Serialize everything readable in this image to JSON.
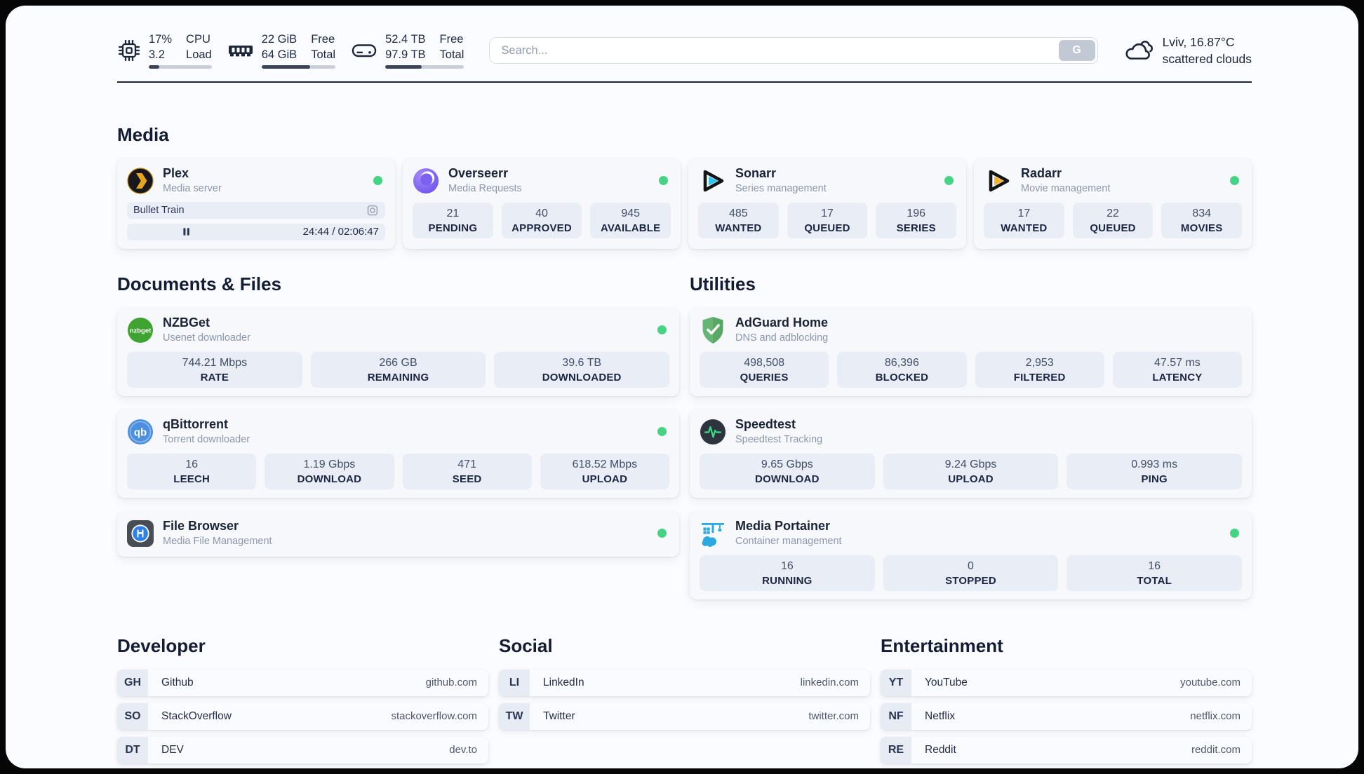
{
  "colors": {
    "status_online": "#45d483",
    "page_background": "#fbfcff",
    "card_background": "#f6f8fb",
    "stat_background": "#e9edf5",
    "text_dark": "#1b2337",
    "text_muted": "#8d97ab",
    "plex_accent": "#e8a41b",
    "sonarr_accent": "#33c3f0",
    "radarr_accent": "#f9b42d",
    "nzbget_accent": "#3fa331",
    "qbittorrent_accent": "#4c8fdd",
    "adguard_accent": "#67b574",
    "speedtest_accent": "#3bdc87",
    "portainer_accent": "#2ba9e0"
  },
  "header": {
    "metrics": {
      "cpu": {
        "value1": "17%",
        "value2": "3.2",
        "label1": "CPU",
        "label2": "Load",
        "progress": 17
      },
      "memory": {
        "value1": "22 GiB",
        "value2": "64 GiB",
        "label1": "Free",
        "label2": "Total",
        "progress": 66
      },
      "disk": {
        "value1": "52.4 TB",
        "value2": "97.9 TB",
        "label1": "Free",
        "label2": "Total",
        "progress": 46
      }
    },
    "search": {
      "placeholder": "Search...",
      "button": "G"
    },
    "weather": {
      "line1": "Lviv, 16.87°C",
      "line2": "scattered clouds"
    }
  },
  "media": {
    "heading": "Media",
    "plex": {
      "name": "Plex",
      "desc": "Media server",
      "stream_title": "Bullet Train",
      "stream_time": "24:44 / 02:06:47",
      "stream_progress": 19.5
    },
    "overseerr": {
      "name": "Overseerr",
      "desc": "Media Requests",
      "stats": [
        {
          "value": "21",
          "label": "PENDING"
        },
        {
          "value": "40",
          "label": "APPROVED"
        },
        {
          "value": "945",
          "label": "AVAILABLE"
        }
      ]
    },
    "sonarr": {
      "name": "Sonarr",
      "desc": "Series management",
      "stats": [
        {
          "value": "485",
          "label": "WANTED"
        },
        {
          "value": "17",
          "label": "QUEUED"
        },
        {
          "value": "196",
          "label": "SERIES"
        }
      ]
    },
    "radarr": {
      "name": "Radarr",
      "desc": "Movie management",
      "stats": [
        {
          "value": "17",
          "label": "WANTED"
        },
        {
          "value": "22",
          "label": "QUEUED"
        },
        {
          "value": "834",
          "label": "MOVIES"
        }
      ]
    }
  },
  "documents": {
    "heading": "Documents & Files",
    "nzbget": {
      "name": "NZBGet",
      "desc": "Usenet downloader",
      "stats": [
        {
          "value": "744.21 Mbps",
          "label": "RATE"
        },
        {
          "value": "266 GB",
          "label": "REMAINING"
        },
        {
          "value": "39.6 TB",
          "label": "DOWNLOADED"
        }
      ]
    },
    "qbittorrent": {
      "name": "qBittorrent",
      "desc": "Torrent downloader",
      "stats": [
        {
          "value": "16",
          "label": "LEECH"
        },
        {
          "value": "1.19 Gbps",
          "label": "DOWNLOAD"
        },
        {
          "value": "471",
          "label": "SEED"
        },
        {
          "value": "618.52 Mbps",
          "label": "UPLOAD"
        }
      ]
    },
    "filebrowser": {
      "name": "File Browser",
      "desc": "Media File Management"
    }
  },
  "utilities": {
    "heading": "Utilities",
    "adguard": {
      "name": "AdGuard Home",
      "desc": "DNS and adblocking",
      "stats": [
        {
          "value": "498,508",
          "label": "QUERIES"
        },
        {
          "value": "86,396",
          "label": "BLOCKED"
        },
        {
          "value": "2,953",
          "label": "FILTERED"
        },
        {
          "value": "47.57 ms",
          "label": "LATENCY"
        }
      ]
    },
    "speedtest": {
      "name": "Speedtest",
      "desc": "Speedtest Tracking",
      "stats": [
        {
          "value": "9.65 Gbps",
          "label": "DOWNLOAD"
        },
        {
          "value": "9.24 Gbps",
          "label": "UPLOAD"
        },
        {
          "value": "0.993 ms",
          "label": "PING"
        }
      ]
    },
    "portainer": {
      "name": "Media Portainer",
      "desc": "Container management",
      "stats": [
        {
          "value": "16",
          "label": "RUNNING"
        },
        {
          "value": "0",
          "label": "STOPPED"
        },
        {
          "value": "16",
          "label": "TOTAL"
        }
      ]
    }
  },
  "links": {
    "developer": {
      "heading": "Developer",
      "items": [
        {
          "tag": "GH",
          "name": "Github",
          "url": "github.com"
        },
        {
          "tag": "SO",
          "name": "StackOverflow",
          "url": "stackoverflow.com"
        },
        {
          "tag": "DT",
          "name": "DEV",
          "url": "dev.to"
        }
      ]
    },
    "social": {
      "heading": "Social",
      "items": [
        {
          "tag": "LI",
          "name": "LinkedIn",
          "url": "linkedin.com"
        },
        {
          "tag": "TW",
          "name": "Twitter",
          "url": "twitter.com"
        }
      ]
    },
    "entertainment": {
      "heading": "Entertainment",
      "items": [
        {
          "tag": "YT",
          "name": "YouTube",
          "url": "youtube.com"
        },
        {
          "tag": "NF",
          "name": "Netflix",
          "url": "netflix.com"
        },
        {
          "tag": "RE",
          "name": "Reddit",
          "url": "reddit.com"
        }
      ]
    }
  }
}
